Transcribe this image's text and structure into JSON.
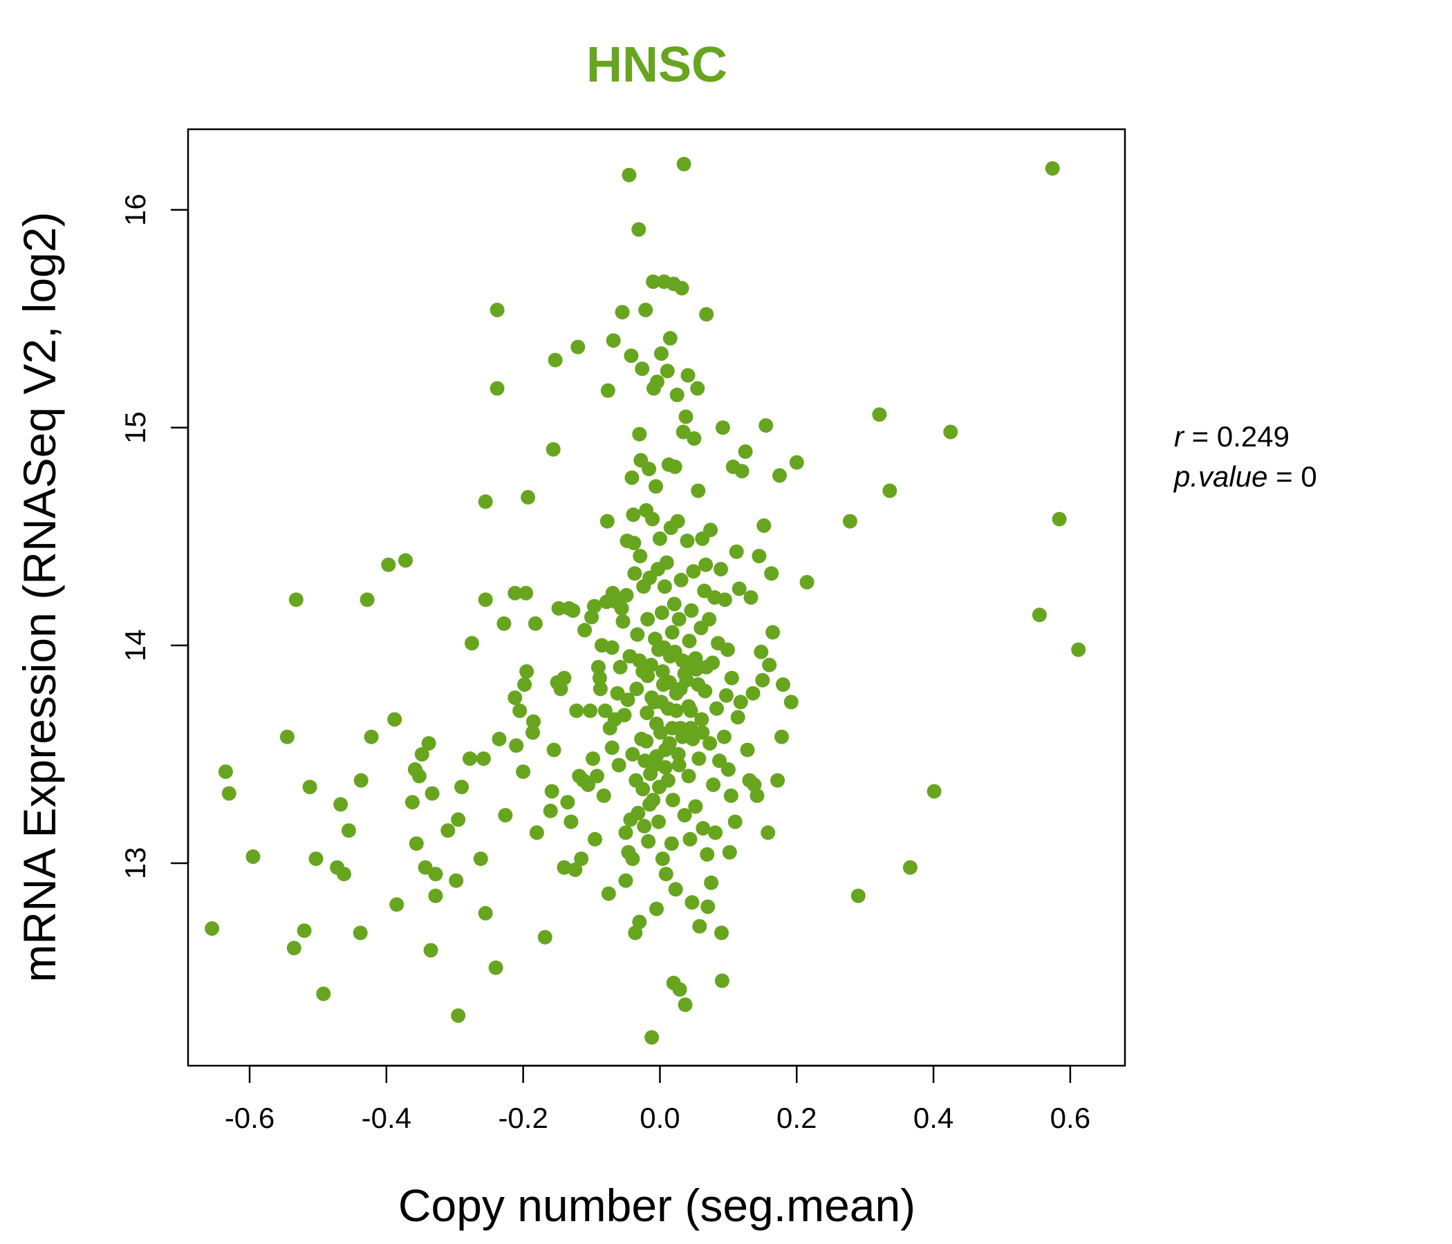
{
  "chart_data": {
    "type": "scatter",
    "title": "HNSC",
    "xlabel": "Copy number (seg.mean)",
    "ylabel": "mRNA Expression (RNASeq V2, log2)",
    "xlim": [
      -0.69,
      0.68
    ],
    "ylim": [
      12.07,
      16.37
    ],
    "x_ticks": [
      -0.6,
      -0.4,
      -0.2,
      0.0,
      0.2,
      0.4,
      0.6
    ],
    "x_tick_labels": [
      "-0.6",
      "-0.4",
      "-0.2",
      "0.0",
      "0.2",
      "0.4",
      "0.6"
    ],
    "y_ticks": [
      13,
      14,
      15,
      16
    ],
    "y_tick_labels": [
      "13",
      "14",
      "15",
      "16"
    ],
    "grid": false,
    "point_color": "#67a51f",
    "stats": {
      "r_label": "r",
      "r_value": "0.249",
      "p_label": "p.value",
      "p_value": "0"
    },
    "points": [
      [
        -0.655,
        12.7
      ],
      [
        -0.635,
        13.42
      ],
      [
        -0.63,
        13.32
      ],
      [
        -0.595,
        13.03
      ],
      [
        -0.545,
        13.58
      ],
      [
        -0.535,
        12.61
      ],
      [
        -0.532,
        14.21
      ],
      [
        -0.52,
        12.69
      ],
      [
        -0.512,
        13.35
      ],
      [
        -0.503,
        13.02
      ],
      [
        -0.492,
        12.4
      ],
      [
        -0.472,
        12.98
      ],
      [
        -0.467,
        13.27
      ],
      [
        -0.462,
        12.95
      ],
      [
        -0.455,
        13.15
      ],
      [
        -0.438,
        12.68
      ],
      [
        -0.437,
        13.38
      ],
      [
        -0.428,
        14.21
      ],
      [
        -0.422,
        13.58
      ],
      [
        -0.397,
        14.37
      ],
      [
        -0.388,
        13.66
      ],
      [
        -0.385,
        12.81
      ],
      [
        -0.372,
        14.39
      ],
      [
        -0.362,
        13.28
      ],
      [
        -0.358,
        13.43
      ],
      [
        -0.356,
        13.09
      ],
      [
        -0.352,
        13.4
      ],
      [
        -0.348,
        13.5
      ],
      [
        -0.343,
        12.98
      ],
      [
        -0.338,
        13.55
      ],
      [
        -0.335,
        12.6
      ],
      [
        -0.333,
        13.32
      ],
      [
        -0.328,
        12.95
      ],
      [
        -0.328,
        12.85
      ],
      [
        -0.31,
        13.15
      ],
      [
        -0.298,
        12.92
      ],
      [
        -0.295,
        13.2
      ],
      [
        -0.295,
        12.3
      ],
      [
        -0.29,
        13.35
      ],
      [
        -0.278,
        13.48
      ],
      [
        -0.275,
        14.01
      ],
      [
        -0.262,
        13.02
      ],
      [
        -0.258,
        13.48
      ],
      [
        -0.255,
        12.77
      ],
      [
        -0.255,
        14.21
      ],
      [
        -0.255,
        14.66
      ],
      [
        -0.24,
        12.52
      ],
      [
        -0.238,
        15.54
      ],
      [
        -0.238,
        15.18
      ],
      [
        -0.235,
        13.57
      ],
      [
        -0.228,
        14.1
      ],
      [
        -0.226,
        13.22
      ],
      [
        -0.212,
        14.24
      ],
      [
        -0.212,
        13.76
      ],
      [
        -0.21,
        13.54
      ],
      [
        -0.205,
        13.7
      ],
      [
        -0.2,
        13.42
      ],
      [
        -0.198,
        13.82
      ],
      [
        -0.196,
        14.24
      ],
      [
        -0.195,
        13.88
      ],
      [
        -0.193,
        14.68
      ],
      [
        -0.186,
        13.6
      ],
      [
        -0.185,
        13.65
      ],
      [
        -0.182,
        14.1
      ],
      [
        -0.18,
        13.14
      ],
      [
        -0.168,
        12.66
      ],
      [
        -0.16,
        13.24
      ],
      [
        -0.158,
        13.33
      ],
      [
        -0.156,
        14.9
      ],
      [
        -0.155,
        13.52
      ],
      [
        -0.153,
        15.31
      ],
      [
        -0.15,
        13.83
      ],
      [
        -0.148,
        14.17
      ],
      [
        -0.145,
        13.8
      ],
      [
        -0.14,
        13.85
      ],
      [
        -0.14,
        12.98
      ],
      [
        -0.135,
        13.28
      ],
      [
        -0.133,
        14.17
      ],
      [
        -0.13,
        13.19
      ],
      [
        -0.127,
        14.16
      ],
      [
        -0.124,
        12.97
      ],
      [
        -0.122,
        13.7
      ],
      [
        -0.12,
        15.37
      ],
      [
        -0.118,
        13.4
      ],
      [
        -0.115,
        13.02
      ],
      [
        -0.112,
        13.38
      ],
      [
        -0.11,
        14.07
      ],
      [
        -0.105,
        13.36
      ],
      [
        -0.102,
        13.7
      ],
      [
        -0.1,
        14.13
      ],
      [
        -0.098,
        13.48
      ],
      [
        -0.096,
        14.18
      ],
      [
        -0.095,
        13.11
      ],
      [
        -0.092,
        13.4
      ],
      [
        -0.09,
        13.9
      ],
      [
        -0.088,
        13.85
      ],
      [
        -0.087,
        13.8
      ],
      [
        -0.085,
        14.0
      ],
      [
        -0.082,
        13.31
      ],
      [
        -0.08,
        13.7
      ],
      [
        -0.078,
        14.2
      ],
      [
        -0.077,
        14.57
      ],
      [
        -0.076,
        15.17
      ],
      [
        -0.075,
        12.86
      ],
      [
        -0.073,
        13.62
      ],
      [
        -0.07,
        13.53
      ],
      [
        -0.07,
        13.99
      ],
      [
        -0.069,
        14.24
      ],
      [
        -0.068,
        15.4
      ],
      [
        -0.066,
        13.66
      ],
      [
        -0.064,
        14.2
      ],
      [
        -0.062,
        13.78
      ],
      [
        -0.06,
        13.45
      ],
      [
        -0.058,
        13.9
      ],
      [
        -0.056,
        14.17
      ],
      [
        -0.055,
        15.53
      ],
      [
        -0.054,
        14.11
      ],
      [
        -0.052,
        13.68
      ],
      [
        -0.05,
        13.14
      ],
      [
        -0.05,
        12.92
      ],
      [
        -0.049,
        14.23
      ],
      [
        -0.048,
        14.48
      ],
      [
        -0.047,
        13.75
      ],
      [
        -0.046,
        13.05
      ],
      [
        -0.045,
        16.16
      ],
      [
        -0.044,
        13.95
      ],
      [
        -0.043,
        13.2
      ],
      [
        -0.042,
        15.33
      ],
      [
        -0.041,
        14.77
      ],
      [
        -0.04,
        13.5
      ],
      [
        -0.04,
        13.02
      ],
      [
        -0.039,
        14.6
      ],
      [
        -0.038,
        14.47
      ],
      [
        -0.037,
        14.33
      ],
      [
        -0.036,
        12.68
      ],
      [
        -0.035,
        13.38
      ],
      [
        -0.034,
        13.8
      ],
      [
        -0.033,
        14.05
      ],
      [
        -0.032,
        13.23
      ],
      [
        -0.031,
        15.91
      ],
      [
        -0.03,
        14.97
      ],
      [
        -0.03,
        12.73
      ],
      [
        -0.029,
        14.41
      ],
      [
        -0.028,
        14.85
      ],
      [
        -0.027,
        13.57
      ],
      [
        -0.026,
        15.27
      ],
      [
        -0.025,
        13.88
      ],
      [
        -0.024,
        14.27
      ],
      [
        -0.023,
        13.17
      ],
      [
        -0.022,
        13.47
      ],
      [
        -0.021,
        15.54
      ],
      [
        -0.02,
        14.62
      ],
      [
        -0.019,
        13.69
      ],
      [
        -0.018,
        14.12
      ],
      [
        -0.017,
        13.1
      ],
      [
        -0.016,
        14.81
      ],
      [
        -0.015,
        14.31
      ],
      [
        -0.014,
        13.41
      ],
      [
        -0.013,
        13.91
      ],
      [
        -0.012,
        12.2
      ],
      [
        -0.011,
        14.58
      ],
      [
        -0.01,
        15.67
      ],
      [
        -0.01,
        13.29
      ],
      [
        -0.009,
        15.18
      ],
      [
        -0.008,
        13.74
      ],
      [
        -0.007,
        14.03
      ],
      [
        -0.006,
        14.73
      ],
      [
        -0.005,
        12.79
      ],
      [
        -0.005,
        13.49
      ],
      [
        -0.004,
        15.21
      ],
      [
        -0.003,
        14.35
      ],
      [
        -0.002,
        13.98
      ],
      [
        -0.001,
        13.35
      ],
      [
        0.0,
        14.49
      ],
      [
        0.001,
        13.6
      ],
      [
        0.002,
        15.34
      ],
      [
        0.003,
        14.15
      ],
      [
        0.004,
        13.02
      ],
      [
        0.005,
        13.82
      ],
      [
        0.006,
        15.67
      ],
      [
        0.007,
        14.27
      ],
      [
        0.008,
        13.44
      ],
      [
        0.009,
        12.95
      ],
      [
        0.01,
        14.38
      ],
      [
        0.011,
        15.26
      ],
      [
        0.012,
        13.71
      ],
      [
        0.013,
        14.83
      ],
      [
        0.014,
        13.55
      ],
      [
        0.015,
        15.41
      ],
      [
        0.016,
        14.54
      ],
      [
        0.017,
        13.09
      ],
      [
        0.018,
        14.06
      ],
      [
        0.019,
        13.29
      ],
      [
        0.02,
        15.66
      ],
      [
        0.02,
        12.45
      ],
      [
        0.021,
        14.19
      ],
      [
        0.022,
        14.82
      ],
      [
        0.023,
        12.88
      ],
      [
        0.024,
        13.78
      ],
      [
        0.025,
        15.15
      ],
      [
        0.026,
        14.57
      ],
      [
        0.027,
        13.5
      ],
      [
        0.028,
        14.12
      ],
      [
        0.029,
        12.42
      ],
      [
        0.03,
        13.62
      ],
      [
        0.031,
        14.3
      ],
      [
        0.032,
        15.64
      ],
      [
        0.033,
        13.93
      ],
      [
        0.034,
        14.98
      ],
      [
        0.035,
        16.21
      ],
      [
        0.036,
        13.22
      ],
      [
        0.037,
        12.35
      ],
      [
        0.038,
        15.05
      ],
      [
        0.039,
        13.84
      ],
      [
        0.04,
        14.48
      ],
      [
        0.041,
        15.24
      ],
      [
        0.042,
        13.4
      ],
      [
        0.043,
        14.02
      ],
      [
        0.044,
        13.11
      ],
      [
        0.045,
        13.7
      ],
      [
        0.046,
        14.16
      ],
      [
        0.047,
        12.82
      ],
      [
        0.048,
        13.57
      ],
      [
        0.049,
        14.34
      ],
      [
        0.05,
        14.95
      ],
      [
        0.052,
        13.26
      ],
      [
        0.053,
        13.89
      ],
      [
        0.055,
        15.18
      ],
      [
        0.056,
        14.71
      ],
      [
        0.057,
        13.48
      ],
      [
        0.058,
        12.71
      ],
      [
        0.06,
        14.08
      ],
      [
        0.061,
        13.66
      ],
      [
        0.062,
        14.49
      ],
      [
        0.063,
        13.16
      ],
      [
        0.065,
        14.25
      ],
      [
        0.066,
        13.79
      ],
      [
        0.067,
        14.37
      ],
      [
        0.068,
        15.52
      ],
      [
        0.069,
        13.04
      ],
      [
        0.07,
        12.8
      ],
      [
        0.072,
        14.12
      ],
      [
        0.073,
        13.55
      ],
      [
        0.074,
        14.53
      ],
      [
        0.075,
        12.91
      ],
      [
        0.077,
        13.92
      ],
      [
        0.078,
        13.36
      ],
      [
        0.08,
        14.22
      ],
      [
        0.081,
        13.14
      ],
      [
        0.083,
        13.71
      ],
      [
        0.085,
        14.01
      ],
      [
        0.087,
        13.47
      ],
      [
        0.089,
        14.35
      ],
      [
        0.09,
        12.68
      ],
      [
        0.091,
        12.46
      ],
      [
        0.092,
        15.0
      ],
      [
        0.094,
        13.58
      ],
      [
        0.095,
        14.21
      ],
      [
        0.097,
        13.77
      ],
      [
        0.099,
        13.98
      ],
      [
        0.1,
        13.43
      ],
      [
        0.102,
        13.05
      ],
      [
        0.104,
        13.31
      ],
      [
        0.105,
        13.85
      ],
      [
        0.107,
        14.82
      ],
      [
        0.11,
        13.19
      ],
      [
        0.112,
        14.43
      ],
      [
        0.114,
        13.67
      ],
      [
        0.116,
        14.26
      ],
      [
        0.118,
        13.74
      ],
      [
        0.12,
        14.8
      ],
      [
        0.125,
        14.89
      ],
      [
        0.128,
        13.52
      ],
      [
        0.131,
        13.38
      ],
      [
        0.133,
        14.22
      ],
      [
        0.136,
        13.78
      ],
      [
        0.138,
        13.36
      ],
      [
        0.142,
        13.31
      ],
      [
        0.145,
        14.41
      ],
      [
        0.148,
        13.97
      ],
      [
        0.15,
        13.84
      ],
      [
        0.152,
        14.55
      ],
      [
        0.155,
        15.01
      ],
      [
        0.158,
        13.14
      ],
      [
        0.16,
        13.91
      ],
      [
        0.163,
        14.33
      ],
      [
        0.165,
        14.06
      ],
      [
        0.172,
        13.38
      ],
      [
        0.175,
        14.78
      ],
      [
        0.178,
        13.58
      ],
      [
        0.18,
        13.82
      ],
      [
        0.192,
        13.74
      ],
      [
        0.2,
        14.84
      ],
      [
        0.215,
        14.29
      ],
      [
        0.278,
        14.57
      ],
      [
        0.29,
        12.85
      ],
      [
        0.321,
        15.06
      ],
      [
        0.336,
        14.71
      ],
      [
        0.366,
        12.98
      ],
      [
        0.401,
        13.33
      ],
      [
        0.425,
        14.98
      ],
      [
        0.555,
        14.14
      ],
      [
        0.574,
        16.19
      ],
      [
        0.584,
        14.58
      ],
      [
        0.612,
        13.98
      ],
      [
        -0.005,
        13.64
      ],
      [
        0.004,
        13.88
      ],
      [
        -0.012,
        13.76
      ],
      [
        0.015,
        13.95
      ],
      [
        0.024,
        13.7
      ],
      [
        -0.02,
        13.56
      ],
      [
        0.008,
        13.52
      ],
      [
        0.03,
        13.8
      ],
      [
        0.04,
        13.92
      ],
      [
        -0.03,
        13.93
      ],
      [
        0.018,
        13.62
      ],
      [
        0.002,
        13.74
      ],
      [
        0.036,
        13.87
      ],
      [
        -0.008,
        13.45
      ],
      [
        0.012,
        13.38
      ],
      [
        0.045,
        13.62
      ],
      [
        0.052,
        13.94
      ],
      [
        -0.015,
        13.27
      ],
      [
        0.022,
        13.97
      ],
      [
        0.062,
        13.6
      ],
      [
        -0.025,
        13.34
      ],
      [
        0.028,
        13.45
      ],
      [
        0.006,
        13.99
      ],
      [
        0.068,
        13.9
      ],
      [
        -0.002,
        13.19
      ],
      [
        0.042,
        13.72
      ],
      [
        0.056,
        13.82
      ],
      [
        0.014,
        13.83
      ],
      [
        -0.018,
        13.86
      ],
      [
        0.033,
        13.58
      ]
    ]
  }
}
